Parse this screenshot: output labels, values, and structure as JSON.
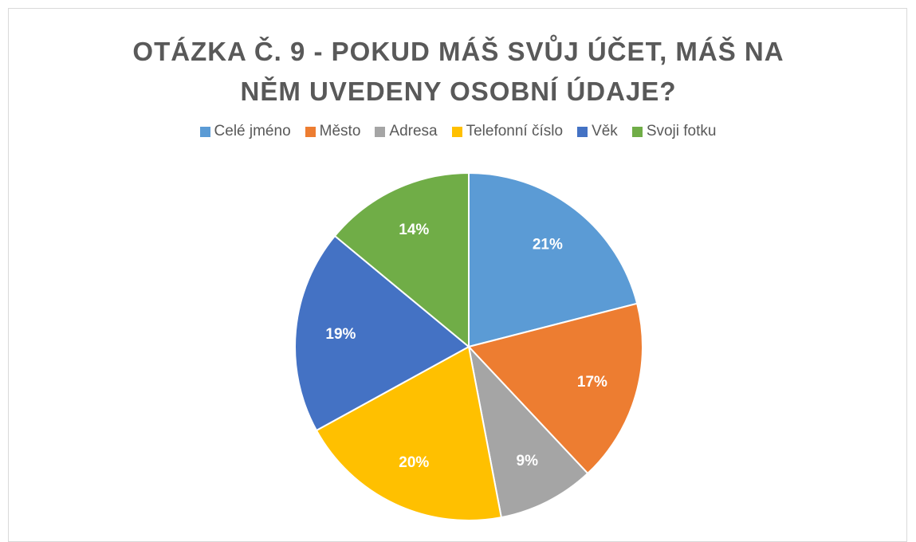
{
  "chart_data": {
    "type": "pie",
    "title": "OTÁZKA Č. 9 - POKUD MÁŠ SVŮJ ÚČET, MÁŠ NA NĚM UVEDENY OSOBNÍ ÚDAJE?",
    "categories": [
      "Celé jméno",
      "Město",
      "Adresa",
      "Telefonní číslo",
      "Věk",
      "Svoji fotku"
    ],
    "values": [
      21,
      17,
      9,
      20,
      19,
      14
    ],
    "value_labels": [
      "21%",
      "17%",
      "9%",
      "20%",
      "19%",
      "14%"
    ],
    "colors": [
      "#5b9bd5",
      "#ed7d31",
      "#a5a5a5",
      "#ffc000",
      "#4472c4",
      "#70ad47"
    ],
    "legend": "top"
  }
}
